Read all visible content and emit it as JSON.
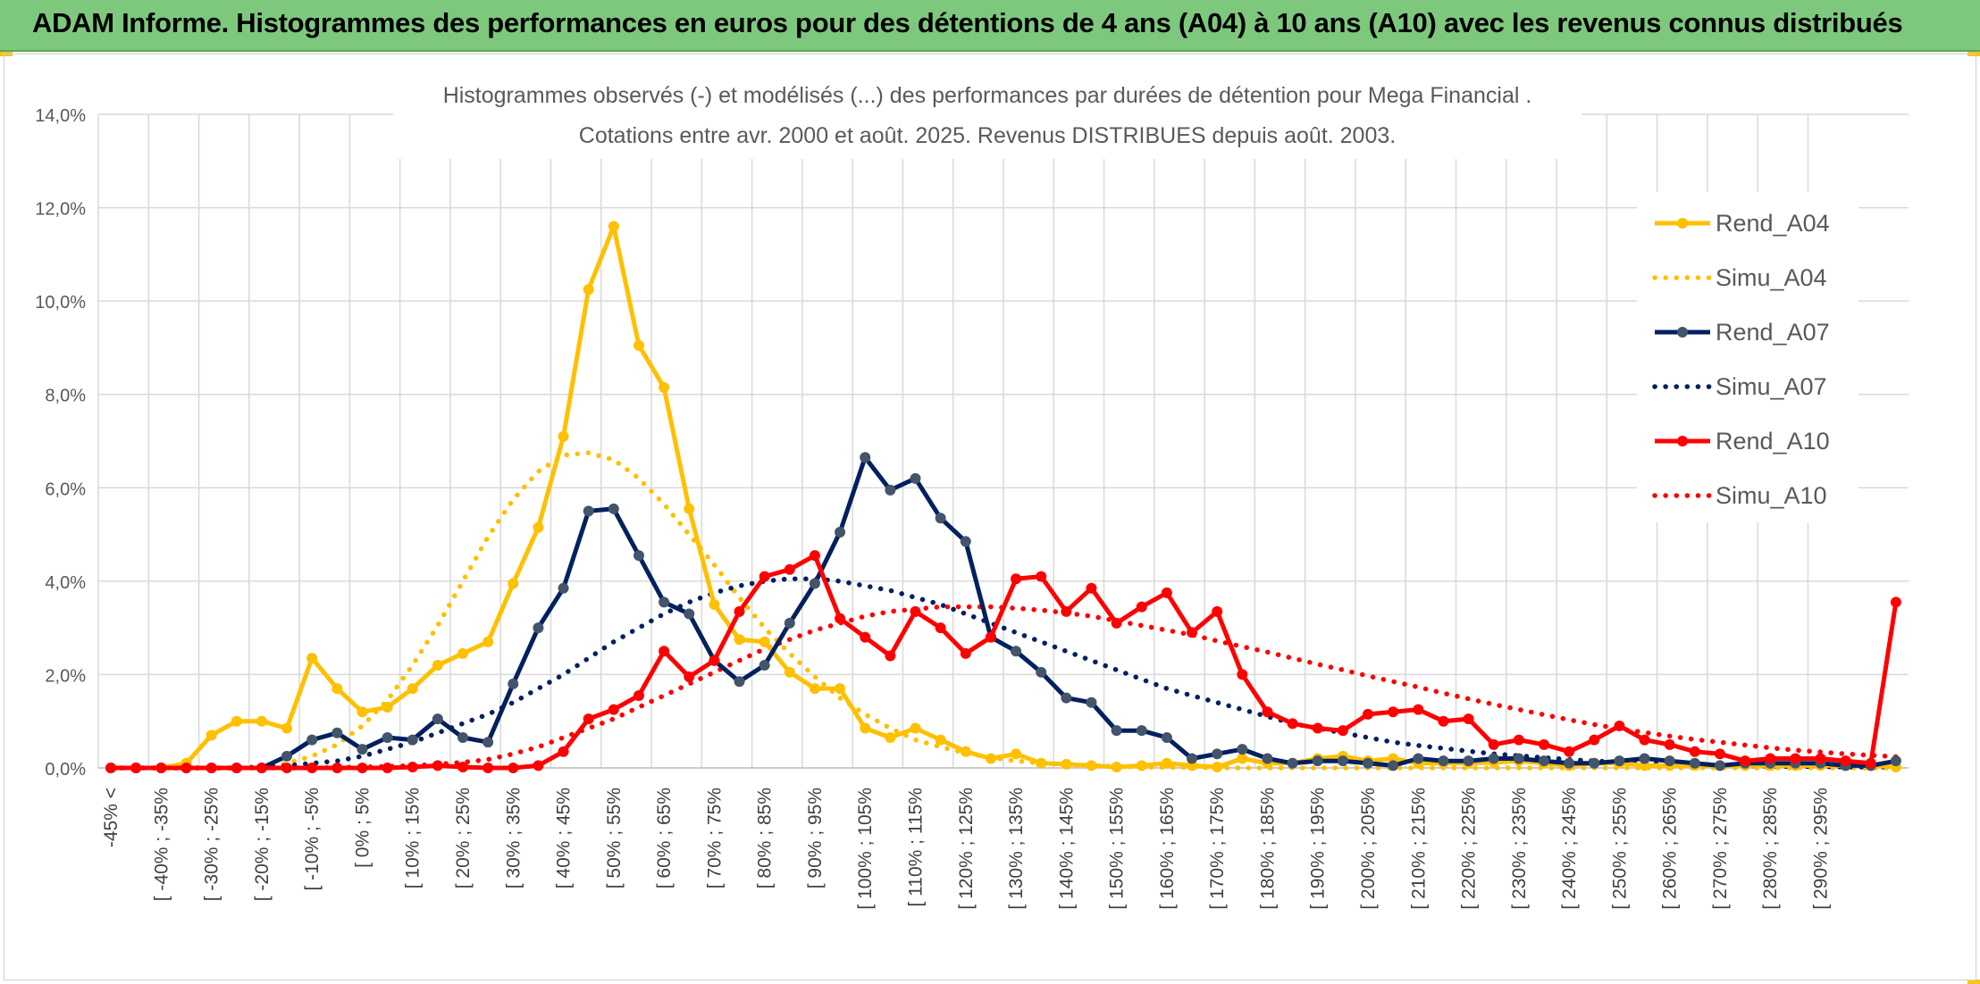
{
  "banner": {
    "title": "ADAM Informe. Histogrammes des performances en euros pour des détentions de 4 ans (A04) à 10 ans (A10) avec les revenus connus distribués"
  },
  "colors": {
    "banner": "#7ec87e",
    "A04": "#ffc000",
    "A07": "#002060",
    "A07_marker": "#44546a",
    "A10": "#ff0000",
    "grid": "#d9d9d9"
  },
  "chart_data": {
    "type": "line",
    "title": "Histogrammes observés (-) et modélisés (...) des performances par durées de détention pour Mega Financial .",
    "subtitle": "Cotations entre avr. 2000 et août. 2025. Revenus DISTRIBUES depuis août. 2003.",
    "xlabel": "",
    "ylabel": "",
    "ylim": [
      0,
      14
    ],
    "y_ticks": [
      "0,0%",
      "2,0%",
      "4,0%",
      "6,0%",
      "8,0%",
      "10,0%",
      "12,0%",
      "14,0%"
    ],
    "x_tick_labels": [
      "-45% <",
      "[ -40% ; -35%",
      "[ -30% ; -25%",
      "[ -20% ; -15%",
      "[ -10% ; -5%",
      "[ 0% ; 5%",
      "[ 10% ; 15%",
      "[ 20% ; 25%",
      "[ 30% ; 35%",
      "[ 40% ; 45%",
      "[ 50% ; 55%",
      "[ 60% ; 65%",
      "[ 70% ; 75%",
      "[ 80% ; 85%",
      "[ 90% ; 95%",
      "[ 100% ; 105%",
      "[ 110% ; 115%",
      "[ 120% ; 125%",
      "[ 130% ; 135%",
      "[ 140% ; 145%",
      "[ 150% ; 155%",
      "[ 160% ; 165%",
      "[ 170% ; 175%",
      "[ 180% ; 185%",
      "[ 190% ; 195%",
      "[ 200% ; 205%",
      "[ 210% ; 215%",
      "[ 220% ; 225%",
      "[ 230% ; 235%",
      "[ 240% ; 245%",
      "[ 250% ; 255%",
      "[ 260% ; 265%",
      "[ 270% ; 275%",
      "[ 280% ; 285%",
      "[ 290% ; 295%"
    ],
    "grid": true,
    "legend_position": "right",
    "series": [
      {
        "name": "Rend_A04",
        "style": "solid",
        "color": "#ffc000",
        "values": [
          0.0,
          0.0,
          0.0,
          0.1,
          0.7,
          1.0,
          1.0,
          0.85,
          2.35,
          1.7,
          1.2,
          1.3,
          1.7,
          2.2,
          2.45,
          2.7,
          3.95,
          5.15,
          7.1,
          10.25,
          11.6,
          9.05,
          8.15,
          5.55,
          3.5,
          2.75,
          2.7,
          2.05,
          1.7,
          1.7,
          0.85,
          0.65,
          0.85,
          0.6,
          0.35,
          0.2,
          0.3,
          0.1,
          0.08,
          0.05,
          0.02,
          0.05,
          0.1,
          0.05,
          0.02,
          0.2,
          0.1,
          0.1,
          0.2,
          0.25,
          0.15,
          0.2,
          0.1,
          0.1,
          0.1,
          0.12,
          0.15,
          0.1,
          0.05,
          0.1,
          0.1,
          0.05,
          0.05,
          0.05,
          0.05,
          0.05,
          0.05,
          0.05,
          0.05,
          0.05,
          0.05,
          0.02
        ]
      },
      {
        "name": "Simu_A04",
        "style": "dotted",
        "color": "#ffc000",
        "values": [
          0.0,
          0.0,
          0.0,
          0.0,
          0.0,
          0.0,
          0.02,
          0.1,
          0.25,
          0.5,
          0.9,
          1.45,
          2.2,
          3.05,
          4.0,
          4.95,
          5.75,
          6.35,
          6.7,
          6.75,
          6.6,
          6.2,
          5.65,
          5.0,
          4.35,
          3.65,
          3.0,
          2.45,
          1.95,
          1.5,
          1.15,
          0.85,
          0.6,
          0.45,
          0.32,
          0.22,
          0.15,
          0.1,
          0.07,
          0.05,
          0.03,
          0.02,
          0.01,
          0.01,
          0.0,
          0.0,
          0.0,
          0.0,
          0.0,
          0.0,
          0.0,
          0.0,
          0.0,
          0.0,
          0.0,
          0.0,
          0.0,
          0.0,
          0.0,
          0.0,
          0.0,
          0.0,
          0.0,
          0.0,
          0.0,
          0.0,
          0.0,
          0.0,
          0.0,
          0.0,
          0.0,
          0.0
        ]
      },
      {
        "name": "Rend_A07",
        "style": "solid",
        "color": "#002060",
        "values": [
          0.0,
          0.0,
          0.0,
          0.0,
          0.0,
          0.0,
          0.0,
          0.25,
          0.6,
          0.75,
          0.4,
          0.65,
          0.6,
          1.05,
          0.65,
          0.55,
          1.8,
          3.0,
          3.85,
          5.5,
          5.55,
          4.55,
          3.55,
          3.3,
          2.3,
          1.85,
          2.2,
          3.1,
          3.95,
          5.05,
          6.65,
          5.95,
          6.2,
          5.35,
          4.85,
          2.8,
          2.5,
          2.05,
          1.5,
          1.4,
          0.8,
          0.8,
          0.65,
          0.2,
          0.3,
          0.4,
          0.2,
          0.1,
          0.15,
          0.15,
          0.1,
          0.05,
          0.2,
          0.15,
          0.15,
          0.2,
          0.2,
          0.15,
          0.1,
          0.1,
          0.15,
          0.2,
          0.15,
          0.1,
          0.05,
          0.1,
          0.1,
          0.1,
          0.1,
          0.05,
          0.05,
          0.15
        ]
      },
      {
        "name": "Simu_A07",
        "style": "dotted",
        "color": "#002060",
        "values": [
          0.0,
          0.0,
          0.0,
          0.0,
          0.0,
          0.0,
          0.02,
          0.05,
          0.1,
          0.15,
          0.25,
          0.4,
          0.55,
          0.75,
          0.95,
          1.15,
          1.4,
          1.7,
          2.0,
          2.35,
          2.7,
          3.0,
          3.3,
          3.55,
          3.75,
          3.9,
          4.0,
          4.05,
          4.05,
          4.0,
          3.9,
          3.8,
          3.65,
          3.5,
          3.3,
          3.1,
          2.9,
          2.7,
          2.5,
          2.3,
          2.1,
          1.9,
          1.7,
          1.55,
          1.4,
          1.25,
          1.1,
          0.95,
          0.85,
          0.75,
          0.65,
          0.55,
          0.48,
          0.42,
          0.36,
          0.3,
          0.26,
          0.22,
          0.18,
          0.15,
          0.12,
          0.1,
          0.08,
          0.07,
          0.06,
          0.05,
          0.04,
          0.03,
          0.03,
          0.02,
          0.02,
          0.02
        ]
      },
      {
        "name": "Rend_A10",
        "style": "solid",
        "color": "#ff0000",
        "values": [
          0.0,
          0.0,
          0.0,
          0.0,
          0.0,
          0.0,
          0.0,
          0.0,
          0.0,
          0.0,
          0.0,
          0.0,
          0.02,
          0.05,
          0.02,
          0.0,
          0.0,
          0.05,
          0.35,
          1.05,
          1.25,
          1.55,
          2.5,
          1.95,
          2.3,
          3.35,
          4.1,
          4.25,
          4.55,
          3.2,
          2.8,
          2.4,
          3.35,
          3.0,
          2.45,
          2.8,
          4.05,
          4.1,
          3.35,
          3.85,
          3.1,
          3.45,
          3.75,
          2.9,
          3.35,
          2.0,
          1.2,
          0.95,
          0.85,
          0.8,
          1.15,
          1.2,
          1.25,
          1.0,
          1.05,
          0.5,
          0.6,
          0.5,
          0.35,
          0.6,
          0.9,
          0.6,
          0.5,
          0.35,
          0.3,
          0.15,
          0.2,
          0.2,
          0.2,
          0.15,
          0.1,
          3.55
        ]
      },
      {
        "name": "Simu_A10",
        "style": "dotted",
        "color": "#ff0000",
        "values": [
          0.0,
          0.0,
          0.0,
          0.0,
          0.0,
          0.0,
          0.0,
          0.0,
          0.0,
          0.01,
          0.02,
          0.03,
          0.05,
          0.08,
          0.12,
          0.18,
          0.3,
          0.45,
          0.65,
          0.85,
          1.05,
          1.3,
          1.55,
          1.8,
          2.05,
          2.3,
          2.55,
          2.75,
          2.95,
          3.1,
          3.25,
          3.35,
          3.4,
          3.45,
          3.45,
          3.45,
          3.42,
          3.38,
          3.32,
          3.25,
          3.15,
          3.05,
          2.95,
          2.85,
          2.72,
          2.6,
          2.48,
          2.35,
          2.22,
          2.1,
          1.97,
          1.85,
          1.73,
          1.6,
          1.48,
          1.36,
          1.25,
          1.14,
          1.03,
          0.93,
          0.84,
          0.76,
          0.68,
          0.61,
          0.55,
          0.49,
          0.43,
          0.38,
          0.34,
          0.3,
          0.27,
          0.24
        ]
      }
    ]
  }
}
